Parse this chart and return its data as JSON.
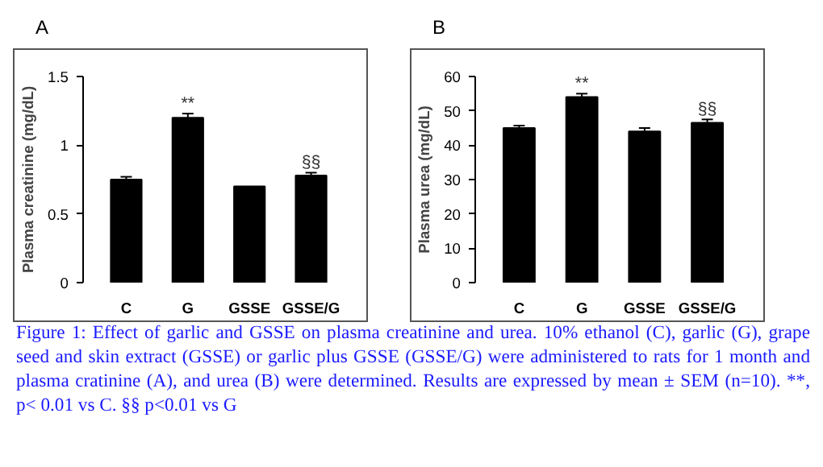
{
  "chart_data": [
    {
      "type": "bar",
      "title": "A",
      "ylabel": "Plasma creatinine (mg/dL)",
      "categories": [
        "C",
        "G",
        "GSSE",
        "GSSE/G"
      ],
      "values": [
        0.75,
        1.2,
        0.7,
        0.78
      ],
      "errors": [
        0.02,
        0.03,
        null,
        0.02
      ],
      "color": "#000000",
      "ylim": [
        0,
        1.5
      ],
      "yticks": [
        0,
        0.5,
        1,
        1.5
      ],
      "grid": false,
      "annotations": [
        {
          "text": "**",
          "x": "G",
          "y": 1.23
        },
        {
          "text": "§§",
          "x": "GSSE/G",
          "y": 0.8
        },
        "Figure 1: Effect of garlic and GSSE on plasma creatinine and urea. 10% ethanol (C), garlic (G), grape seed and skin extract (GSSE) or garlic plus GSSE (GSSE/G) were administered to rats for 1 month and plasma cratinine (A), and urea (B) were determined. Results are expressed by mean ± SEM (n=10). **, p< 0.01 vs C. §§ p<0.01 vs G"
      ]
    },
    {
      "type": "bar",
      "title": "B",
      "ylabel": "Plasma urea (mg/dL)",
      "categories": [
        "C",
        "G",
        "GSSE",
        "GSSE/G"
      ],
      "values": [
        45,
        54,
        44,
        46.5
      ],
      "errors": [
        0.7,
        1,
        1,
        1
      ],
      "color": "#000000",
      "ylim": [
        0,
        60
      ],
      "yticks": [
        0,
        10,
        20,
        30,
        40,
        50,
        60
      ],
      "grid": false,
      "annotations": [
        {
          "text": "**",
          "x": "G",
          "y": 55
        },
        {
          "text": "§§",
          "x": "GSSE/G",
          "y": 47.5
        }
      ]
    }
  ]
}
